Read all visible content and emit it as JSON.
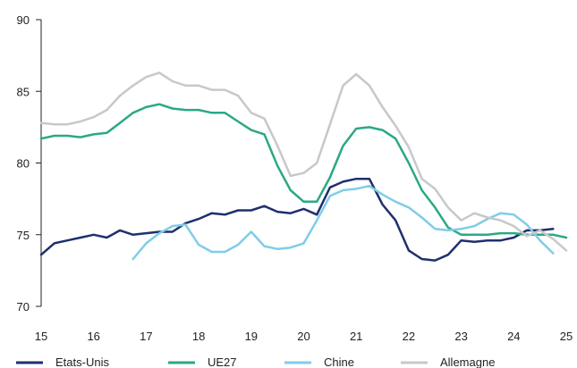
{
  "chart_data": {
    "type": "line",
    "title": "",
    "xlabel": "",
    "ylabel": "",
    "xlim": [
      15,
      25
    ],
    "ylim": [
      70,
      90
    ],
    "x_ticks": [
      "15",
      "16",
      "17",
      "18",
      "19",
      "20",
      "21",
      "22",
      "23",
      "24",
      "25"
    ],
    "y_ticks": [
      "70",
      "75",
      "80",
      "85",
      "90"
    ],
    "grid": false,
    "legend_position": "bottom",
    "series": [
      {
        "name": "Etats-Unis",
        "color": "#1f2f6e",
        "x": [
          15.0,
          15.25,
          15.5,
          15.75,
          16.0,
          16.25,
          16.5,
          16.75,
          17.0,
          17.25,
          17.5,
          17.75,
          18.0,
          18.25,
          18.5,
          18.75,
          19.0,
          19.25,
          19.5,
          19.75,
          20.0,
          20.25,
          20.5,
          20.75,
          21.0,
          21.25,
          21.5,
          21.75,
          22.0,
          22.25,
          22.5,
          22.75,
          23.0,
          23.25,
          23.5,
          23.75,
          24.0,
          24.25,
          24.5,
          24.75
        ],
        "values": [
          73.6,
          74.4,
          74.6,
          74.8,
          75.0,
          74.8,
          75.3,
          75.0,
          75.1,
          75.2,
          75.2,
          75.8,
          76.1,
          76.5,
          76.4,
          76.7,
          76.7,
          77.0,
          76.6,
          76.5,
          76.8,
          76.4,
          78.3,
          78.7,
          78.9,
          78.9,
          77.1,
          76.0,
          73.9,
          73.3,
          73.2,
          73.6,
          74.6,
          74.5,
          74.6,
          74.6,
          74.8,
          75.3,
          75.3,
          75.4
        ]
      },
      {
        "name": "UE27",
        "color": "#2ba886",
        "x": [
          15.0,
          15.25,
          15.5,
          15.75,
          16.0,
          16.25,
          16.5,
          16.75,
          17.0,
          17.25,
          17.5,
          17.75,
          18.0,
          18.25,
          18.5,
          18.75,
          19.0,
          19.25,
          19.5,
          19.75,
          20.0,
          20.25,
          20.5,
          20.75,
          21.0,
          21.25,
          21.5,
          21.75,
          22.0,
          22.25,
          22.5,
          22.75,
          23.0,
          23.25,
          23.5,
          23.75,
          24.0,
          24.25,
          24.5,
          24.75,
          25.0
        ],
        "values": [
          81.7,
          81.9,
          81.9,
          81.8,
          82.0,
          82.1,
          82.8,
          83.5,
          83.9,
          84.1,
          83.8,
          83.7,
          83.7,
          83.5,
          83.5,
          82.9,
          82.3,
          82.0,
          79.8,
          78.1,
          77.3,
          77.3,
          79.0,
          81.2,
          82.4,
          82.5,
          82.3,
          81.7,
          80.0,
          78.1,
          76.9,
          75.5,
          75.0,
          75.0,
          75.0,
          75.1,
          75.1,
          75.0,
          75.0,
          75.0,
          74.8
        ]
      },
      {
        "name": "Chine",
        "color": "#7fcde8",
        "x": [
          16.75,
          17.0,
          17.25,
          17.5,
          17.75,
          18.0,
          18.25,
          18.5,
          18.75,
          19.0,
          19.25,
          19.5,
          19.75,
          20.0,
          20.25,
          20.5,
          20.75,
          21.0,
          21.25,
          21.5,
          21.75,
          22.0,
          22.25,
          22.5,
          22.75,
          23.0,
          23.25,
          23.5,
          23.75,
          24.0,
          24.25,
          24.5,
          24.75
        ],
        "values": [
          73.3,
          74.4,
          75.1,
          75.6,
          75.7,
          74.3,
          73.8,
          73.8,
          74.3,
          75.2,
          74.2,
          74.0,
          74.1,
          74.4,
          76.0,
          77.7,
          78.1,
          78.2,
          78.4,
          77.8,
          77.3,
          76.9,
          76.2,
          75.4,
          75.3,
          75.4,
          75.6,
          76.1,
          76.5,
          76.4,
          75.7,
          74.6,
          73.7
        ]
      },
      {
        "name": "Allemagne",
        "color": "#c8c8c8",
        "x": [
          15.0,
          15.25,
          15.5,
          15.75,
          16.0,
          16.25,
          16.5,
          16.75,
          17.0,
          17.25,
          17.5,
          17.75,
          18.0,
          18.25,
          18.5,
          18.75,
          19.0,
          19.25,
          19.5,
          19.75,
          20.0,
          20.25,
          20.5,
          20.75,
          21.0,
          21.25,
          21.5,
          21.75,
          22.0,
          22.25,
          22.5,
          22.75,
          23.0,
          23.25,
          23.5,
          23.75,
          24.0,
          24.25,
          24.5,
          24.75,
          25.0
        ],
        "values": [
          82.8,
          82.7,
          82.7,
          82.9,
          83.2,
          83.7,
          84.7,
          85.4,
          86.0,
          86.3,
          85.7,
          85.4,
          85.4,
          85.1,
          85.1,
          84.7,
          83.5,
          83.1,
          81.2,
          79.1,
          79.3,
          80.0,
          82.7,
          85.4,
          86.2,
          85.4,
          83.9,
          82.6,
          81.1,
          78.9,
          78.2,
          76.9,
          76.0,
          76.5,
          76.2,
          76.0,
          75.6,
          74.9,
          75.3,
          74.7,
          73.9
        ]
      }
    ]
  }
}
